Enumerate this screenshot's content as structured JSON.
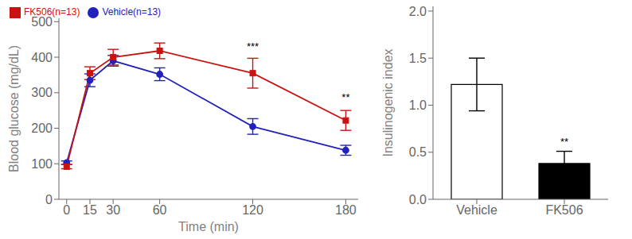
{
  "chart_data": [
    {
      "type": "line",
      "xlabel": "Time (min)",
      "ylabel": "Blood glucose (mg/dL)",
      "x": [
        0,
        15,
        30,
        60,
        120,
        180
      ],
      "series": [
        {
          "name": "Vehicle(n=13)",
          "color": "#2222bb",
          "marker": "circle",
          "values": [
            103,
            335,
            390,
            352,
            205,
            138
          ],
          "errors": [
            5,
            18,
            15,
            18,
            22,
            14
          ]
        },
        {
          "name": "FK506(n=13)",
          "color": "#cc1111",
          "marker": "square",
          "values": [
            92,
            355,
            400,
            418,
            355,
            222
          ],
          "errors": [
            6,
            18,
            22,
            22,
            42,
            28
          ]
        }
      ],
      "xlim": [
        -5,
        188
      ],
      "xticks": [
        0,
        15,
        30,
        60,
        120,
        180
      ],
      "ylim": [
        0,
        510
      ],
      "yticks": [
        0,
        100,
        200,
        300,
        400,
        500
      ],
      "legend": "upper left",
      "grid": false,
      "annotations": [
        {
          "text": "***",
          "x": 120,
          "y": 410
        },
        {
          "text": "**",
          "x": 180,
          "y": 265
        }
      ]
    },
    {
      "type": "bar",
      "ylabel": "Insulinogenic index",
      "categories": [
        "Vehicle",
        "FK506"
      ],
      "values": [
        1.22,
        0.38
      ],
      "errors": [
        0.28,
        0.13
      ],
      "colors": [
        "#ffffff",
        "#000000"
      ],
      "ylim": [
        0,
        2.05
      ],
      "yticks": [
        {
          "value": 0,
          "label": "0.0"
        },
        0.5,
        {
          "value": 1,
          "label": "1.0"
        },
        1.5,
        {
          "value": 2,
          "label": "2.0"
        }
      ],
      "grid": false,
      "annotations": [
        {
          "text": "**",
          "x": "FK506",
          "y": 0.53
        }
      ]
    }
  ]
}
